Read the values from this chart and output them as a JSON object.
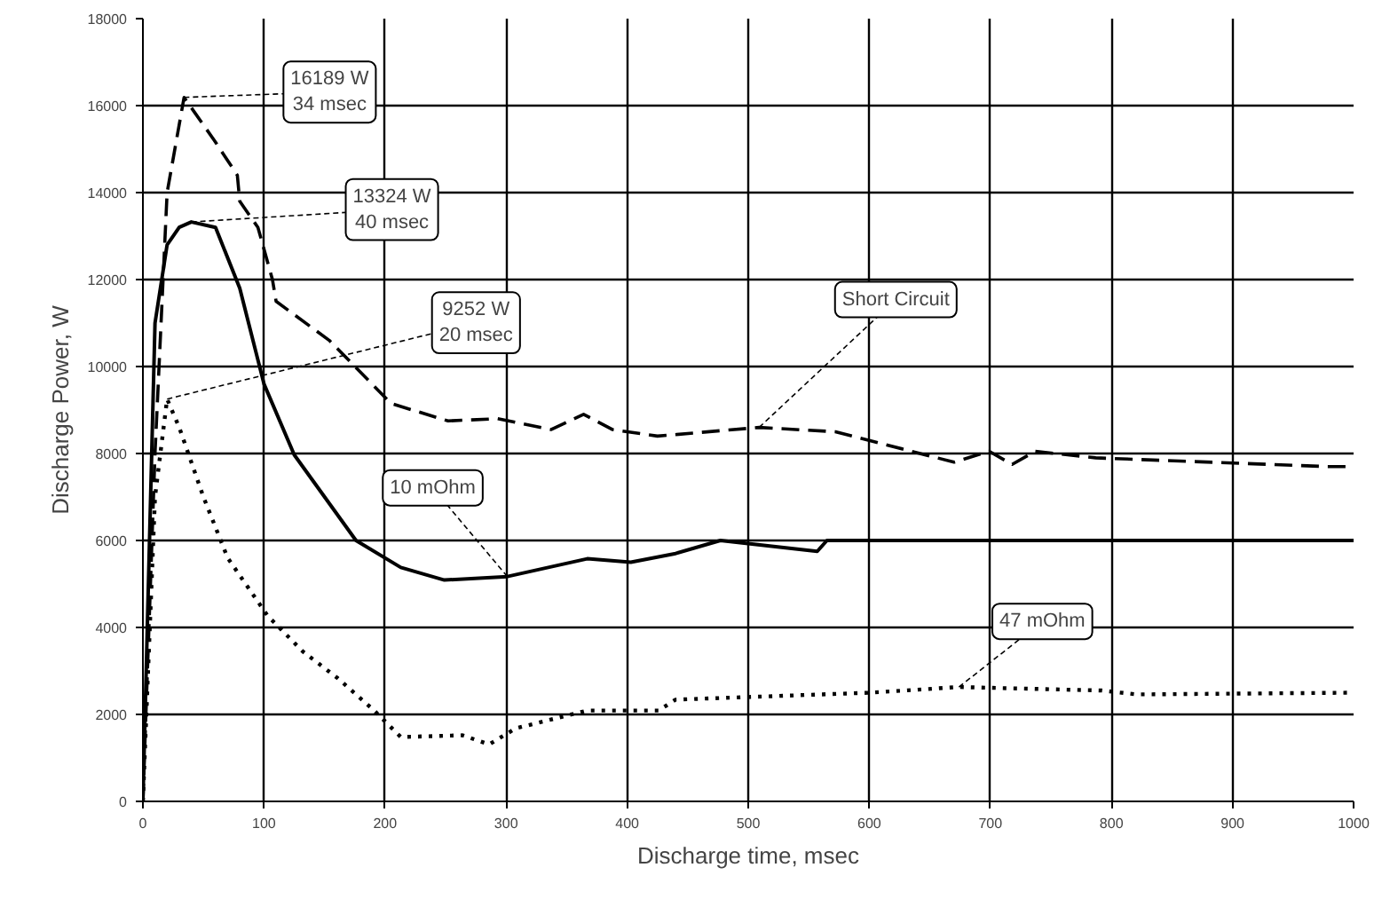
{
  "chart_data": {
    "type": "line",
    "xlabel": "Discharge time, msec",
    "ylabel": "Discharge Power, W",
    "xlim": [
      0,
      1000
    ],
    "xticks": [
      0,
      100,
      200,
      300,
      400,
      500,
      600,
      700,
      800,
      900,
      1000
    ],
    "ylim": [
      0,
      18000
    ],
    "yticks": [
      0,
      2000,
      4000,
      6000,
      8000,
      10000,
      12000,
      14000,
      16000,
      18000
    ],
    "grid": true,
    "marker": "none",
    "series": [
      {
        "name": "Short Circuit",
        "color": "#000000",
        "line_style": "dashed",
        "x": [
          0,
          10,
          20,
          34,
          59,
          78,
          80,
          95,
          107,
          110,
          154,
          205,
          252,
          293,
          337,
          364,
          388,
          425,
          509,
          572,
          670,
          699,
          718,
          737,
          787,
          978,
          1000
        ],
        "values": [
          0,
          8000,
          14000,
          16189,
          15200,
          14400,
          13800,
          13200,
          12000,
          11500,
          10600,
          9150,
          8750,
          8800,
          8550,
          8900,
          8550,
          8400,
          8600,
          8500,
          7800,
          8050,
          7750,
          8050,
          7900,
          7700,
          7700
        ]
      },
      {
        "name": "10 mOhm",
        "color": "#000000",
        "line_style": "solid",
        "x": [
          0,
          10,
          20,
          30,
          40,
          60,
          80,
          100,
          125,
          176,
          213,
          249,
          301,
          367,
          403,
          440,
          477,
          557,
          565,
          1000
        ],
        "values": [
          0,
          11000,
          12800,
          13200,
          13324,
          13200,
          11800,
          9600,
          7970,
          6000,
          5380,
          5090,
          5170,
          5580,
          5500,
          5700,
          6000,
          5750,
          6000,
          6000
        ]
      },
      {
        "name": "47 mOhm",
        "color": "#000000",
        "line_style": "dotted",
        "x": [
          0,
          10,
          20,
          30,
          50,
          70,
          103,
          132,
          161,
          191,
          213,
          264,
          286,
          308,
          367,
          426,
          440,
          601,
          674,
          792,
          821,
          1000
        ],
        "values": [
          0,
          7000,
          9252,
          8600,
          7000,
          5600,
          4270,
          3450,
          2830,
          2090,
          1480,
          1520,
          1310,
          1680,
          2090,
          2090,
          2340,
          2500,
          2630,
          2550,
          2460,
          2500
        ]
      }
    ],
    "annotations": [
      {
        "text": "16189 W\n34 msec",
        "x": 34,
        "y": 16189
      },
      {
        "text": "13324 W\n40 msec",
        "x": 40,
        "y": 13324
      },
      {
        "text": "9252 W\n20 msec",
        "x": 20,
        "y": 9252
      }
    ]
  }
}
